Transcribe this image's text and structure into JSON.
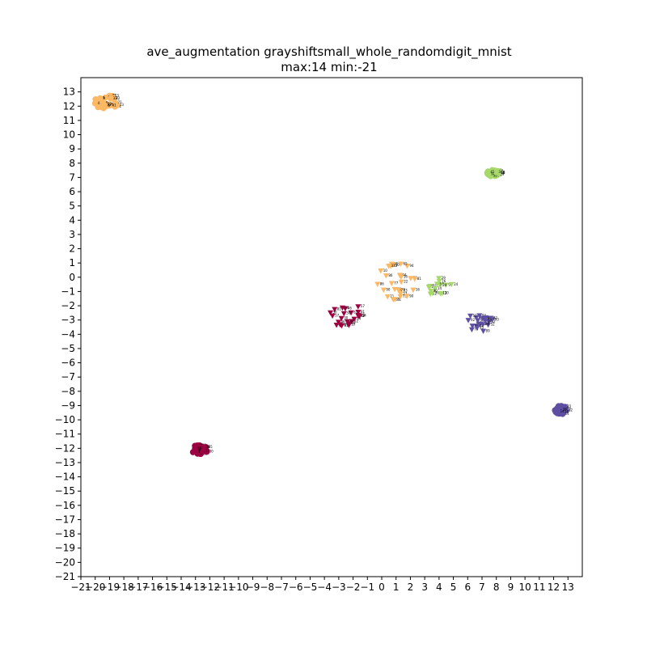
{
  "chart_data": {
    "type": "scatter",
    "title": "ave_augmentation grayshiftsmall_whole_randomdigit_mnist",
    "subtitle": "max:14 min:-21",
    "xlabel": "",
    "ylabel": "",
    "xlim": [
      -21,
      14
    ],
    "ylim": [
      -21,
      14
    ],
    "grid": false,
    "x_ticks": [
      -21,
      -20,
      -19,
      -18,
      -17,
      -16,
      -15,
      -14,
      -13,
      -12,
      -11,
      -10,
      -9,
      -8,
      -7,
      -6,
      -5,
      -4,
      -3,
      -2,
      -1,
      0,
      1,
      2,
      3,
      4,
      5,
      6,
      7,
      8,
      9,
      10,
      11,
      12,
      13
    ],
    "y_ticks": [
      -21,
      -20,
      -19,
      -18,
      -17,
      -16,
      -15,
      -14,
      -13,
      -12,
      -11,
      -10,
      -9,
      -8,
      -7,
      -6,
      -5,
      -4,
      -3,
      -2,
      -1,
      0,
      1,
      2,
      3,
      4,
      5,
      6,
      7,
      8,
      9,
      10,
      11,
      12,
      13
    ],
    "clusters": [
      {
        "color": "#fdb863",
        "marker": "circle",
        "center": [
          -19.2,
          12.3
        ],
        "spread": [
          0.9,
          0.5
        ],
        "count": 28,
        "labels": [
          "82",
          "61",
          "47",
          "13",
          "8",
          "26",
          "33",
          "9",
          "71",
          "51"
        ]
      },
      {
        "color": "#a6d96a",
        "marker": "circle",
        "center": [
          7.8,
          7.3
        ],
        "spread": [
          0.45,
          0.25
        ],
        "count": 26,
        "labels": [
          "34",
          "41",
          "39",
          "58",
          "95",
          "7"
        ]
      },
      {
        "color": "#5e4fa2",
        "marker": "circle",
        "center": [
          12.5,
          -9.3
        ],
        "spread": [
          0.45,
          0.3
        ],
        "count": 26,
        "labels": [
          "36",
          "14",
          "9",
          "22"
        ]
      },
      {
        "color": "#9e0142",
        "marker": "circle",
        "center": [
          -12.7,
          -12.1
        ],
        "spread": [
          0.55,
          0.35
        ],
        "count": 26,
        "labels": [
          "55",
          "31",
          "85",
          "80"
        ]
      },
      {
        "color": "#fdb863",
        "marker": "triangle",
        "center": [
          1.1,
          -0.3
        ],
        "spread": [
          1.5,
          1.3
        ],
        "count": 26,
        "labels": [
          "81",
          "10",
          "22",
          "86",
          "94",
          "65",
          "83",
          "37",
          "71",
          "22",
          "90",
          "77",
          "16"
        ]
      },
      {
        "color": "#a6d96a",
        "marker": "triangle",
        "center": [
          4.0,
          -0.7
        ],
        "spread": [
          0.9,
          0.7
        ],
        "count": 14,
        "labels": [
          "76",
          "57",
          "90",
          "12",
          "24",
          "29",
          "11",
          "14",
          "30"
        ]
      },
      {
        "color": "#9e0142",
        "marker": "triangle",
        "center": [
          -2.6,
          -2.6
        ],
        "spread": [
          1.2,
          0.9
        ],
        "count": 22,
        "labels": [
          "57",
          "46",
          "54",
          "81",
          "12",
          "30"
        ]
      },
      {
        "color": "#5e4fa2",
        "marker": "triangle",
        "center": [
          6.9,
          -3.1
        ],
        "spread": [
          0.9,
          0.8
        ],
        "count": 22,
        "labels": [
          "92",
          "82",
          "93",
          "52",
          "74",
          "89"
        ]
      }
    ]
  }
}
